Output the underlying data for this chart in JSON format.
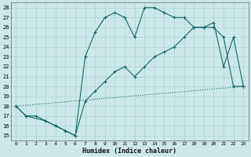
{
  "xlabel": "Humidex (Indice chaleur)",
  "background_color": "#cce8e8",
  "grid_color": "#aad4d4",
  "line_color": "#1a6666",
  "xlim": [
    -0.5,
    23.5
  ],
  "ylim": [
    14.5,
    28.5
  ],
  "yticks": [
    15,
    16,
    17,
    18,
    19,
    20,
    21,
    22,
    23,
    24,
    25,
    26,
    27,
    28
  ],
  "xticks": [
    0,
    1,
    2,
    3,
    4,
    5,
    6,
    7,
    8,
    9,
    10,
    11,
    12,
    13,
    14,
    15,
    16,
    17,
    18,
    19,
    20,
    21,
    22,
    23
  ],
  "series1_x": [
    0,
    1,
    2,
    3,
    4,
    5,
    6,
    7,
    8,
    9,
    10,
    11,
    12,
    13,
    14,
    15,
    16,
    17,
    18,
    19,
    20,
    21,
    22,
    23
  ],
  "series1_y": [
    18,
    17,
    17,
    16.5,
    16,
    15.5,
    15,
    18.5,
    19.5,
    20.5,
    21.5,
    22,
    21,
    22,
    23,
    23.5,
    24,
    25,
    26,
    26,
    26,
    25,
    20,
    20
  ],
  "series2_x": [
    0,
    23
  ],
  "series2_y": [
    18,
    20
  ],
  "series3_x": [
    0,
    1,
    3,
    4,
    5,
    6,
    7,
    8,
    9,
    10,
    11,
    12,
    13,
    14,
    15,
    16,
    17,
    18,
    19,
    20,
    21,
    22,
    23
  ],
  "series3_y": [
    18,
    17,
    16.5,
    16,
    15.5,
    15,
    23,
    25.5,
    27,
    27.5,
    27,
    25,
    28,
    28,
    27.5,
    27,
    27,
    26,
    26,
    26.5,
    22,
    25,
    20
  ]
}
